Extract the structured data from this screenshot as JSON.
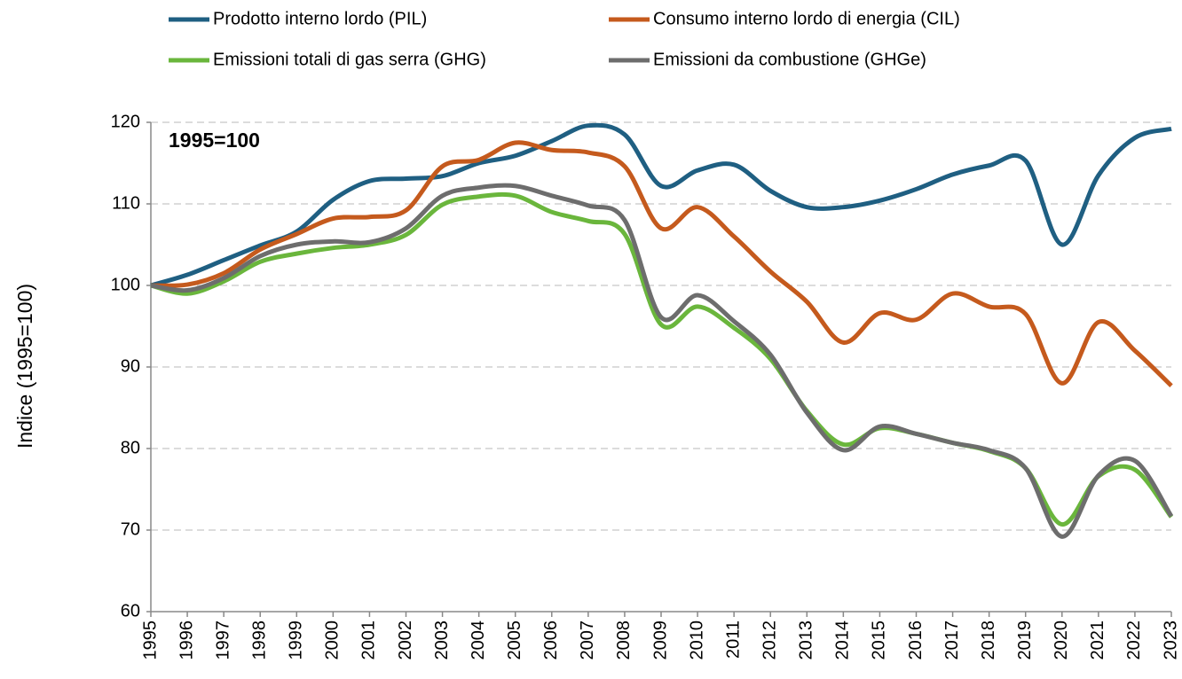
{
  "chart_data": {
    "type": "line",
    "y_label": "Indice (1995=100)",
    "annotation": "1995=100",
    "legend": "top",
    "grid": true,
    "x": [
      1995,
      1996,
      1997,
      1998,
      1999,
      2000,
      2001,
      2002,
      2003,
      2004,
      2005,
      2006,
      2007,
      2008,
      2009,
      2010,
      2011,
      2012,
      2013,
      2014,
      2015,
      2016,
      2017,
      2018,
      2019,
      2020,
      2021,
      2022,
      2023
    ],
    "xlim": [
      1995,
      2023
    ],
    "ylim": [
      60,
      120
    ],
    "yticks": [
      60,
      70,
      80,
      90,
      100,
      110,
      120
    ],
    "series": [
      {
        "name": "Prodotto interno lordo (PIL)",
        "color": "#1f5f82",
        "values": [
          100,
          101.3,
          103.1,
          104.9,
          106.6,
          110.5,
          112.8,
          113.1,
          113.4,
          115.0,
          115.9,
          117.7,
          119.6,
          118.5,
          112.2,
          114.1,
          114.8,
          111.6,
          109.6,
          109.6,
          110.4,
          111.8,
          113.6,
          114.7,
          115.3,
          105.0,
          113.5,
          118.1,
          119.2
        ]
      },
      {
        "name": "Consumo interno lordo di energia (CIL)",
        "color": "#c55a1d",
        "values": [
          100,
          100.1,
          101.5,
          104.4,
          106.3,
          108.2,
          108.4,
          109.2,
          114.6,
          115.4,
          117.5,
          116.6,
          116.3,
          114.6,
          107.0,
          109.6,
          106.0,
          101.7,
          98.0,
          93.0,
          96.6,
          95.8,
          99.0,
          97.4,
          96.5,
          88.0,
          95.5,
          92.0,
          87.7
        ]
      },
      {
        "name": "Emissioni totali di gas serra (GHG)",
        "color": "#6ab63c",
        "values": [
          100,
          99.0,
          100.5,
          102.9,
          103.9,
          104.6,
          105.0,
          106.2,
          109.9,
          110.9,
          111.0,
          109.0,
          107.9,
          106.3,
          95.2,
          97.4,
          94.8,
          91.0,
          84.6,
          80.5,
          82.5,
          81.8,
          80.7,
          79.7,
          77.6,
          70.7,
          76.6,
          77.4,
          71.6
        ]
      },
      {
        "name": "Emissioni da combustione (GHGe)",
        "color": "#6d6d6d",
        "values": [
          100,
          99.4,
          100.9,
          103.6,
          105.0,
          105.4,
          105.3,
          107.0,
          111.0,
          112.0,
          112.2,
          111.0,
          109.8,
          108.0,
          96.1,
          98.8,
          95.6,
          91.5,
          84.4,
          79.8,
          82.7,
          81.8,
          80.7,
          79.8,
          77.6,
          69.2,
          76.7,
          78.5,
          71.7
        ]
      }
    ]
  }
}
